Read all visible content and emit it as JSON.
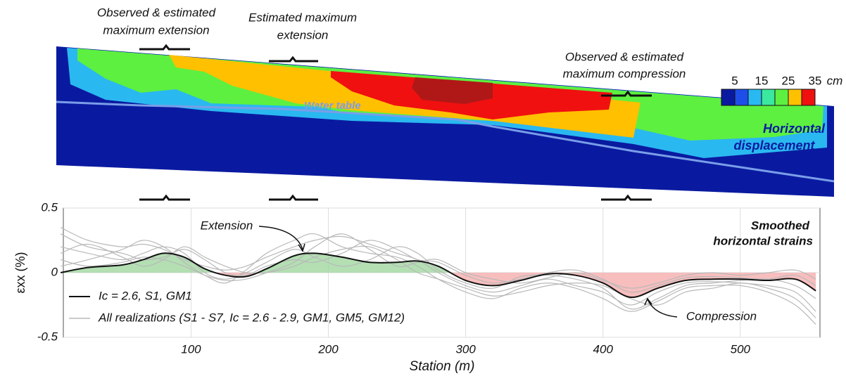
{
  "cross_section": {
    "annotations": [
      {
        "lines": [
          "Observed & estimated",
          "maximum extension"
        ]
      },
      {
        "lines": [
          "Estimated maximum",
          "extension"
        ]
      },
      {
        "lines": [
          "Observed & estimated",
          "maximum compression"
        ]
      }
    ],
    "water_table": "Water table",
    "panel_label": [
      "Horizontal",
      "displacement"
    ],
    "colorbar": {
      "colors": [
        "#0a1aa0",
        "#1d4fe8",
        "#2ab8f0",
        "#3ae8a0",
        "#5df040",
        "#ffc000",
        "#f01010"
      ],
      "ticks": [
        5,
        15,
        25,
        35
      ],
      "unit": "cm"
    }
  },
  "chart_data": {
    "type": "line",
    "x": [
      5,
      25,
      50,
      65,
      80,
      95,
      110,
      125,
      140,
      155,
      175,
      190,
      210,
      230,
      250,
      265,
      280,
      300,
      320,
      340,
      360,
      380,
      400,
      420,
      440,
      460,
      480,
      500,
      520,
      540,
      555
    ],
    "series": [
      {
        "name": "Ic = 2.6, S1, GM1",
        "color": "#111111",
        "values": [
          0,
          0.04,
          0.06,
          0.1,
          0.15,
          0.12,
          0.03,
          -0.02,
          -0.03,
          0.03,
          0.13,
          0.15,
          0.12,
          0.08,
          0.08,
          0.09,
          0.05,
          -0.06,
          -0.1,
          -0.06,
          -0.01,
          -0.02,
          -0.08,
          -0.19,
          -0.12,
          -0.06,
          -0.05,
          -0.05,
          -0.06,
          -0.05,
          -0.14
        ]
      },
      {
        "name": "All realizations (S1 - S7, Ic = 2.6 - 2.9, GM1, GM5, GM12)",
        "color": "#b8b8b8",
        "values": [
          [
            0.35,
            0.25,
            0.2,
            0.22,
            0.18,
            0.1,
            0.05,
            0.02,
            0.05,
            0.12,
            0.2,
            0.25,
            0.28,
            0.22,
            0.15,
            0.1,
            0,
            -0.1,
            -0.15,
            -0.1,
            -0.05,
            -0.1,
            -0.15,
            -0.25,
            -0.15,
            -0.08,
            -0.07,
            -0.08,
            -0.1,
            -0.15,
            -0.3
          ],
          [
            0.2,
            0.15,
            0.1,
            0.15,
            0.2,
            0.15,
            0,
            -0.05,
            0,
            0.08,
            0.18,
            0.12,
            0.05,
            0.1,
            0.2,
            0.15,
            0.02,
            -0.08,
            -0.12,
            -0.03,
            -0.02,
            -0.05,
            -0.12,
            -0.28,
            -0.2,
            -0.1,
            -0.08,
            -0.06,
            -0.05,
            -0.1,
            -0.2
          ],
          [
            0.05,
            0.1,
            0.18,
            0.25,
            0.2,
            0.08,
            -0.02,
            -0.08,
            0.02,
            0.15,
            0.25,
            0.3,
            0.2,
            0.15,
            0.12,
            0.05,
            -0.05,
            -0.15,
            -0.2,
            -0.12,
            -0.08,
            -0.12,
            -0.2,
            -0.3,
            -0.22,
            -0.12,
            -0.1,
            -0.1,
            -0.15,
            -0.25,
            -0.4
          ],
          [
            0.3,
            0.2,
            0.15,
            0.1,
            0.12,
            0.18,
            0.1,
            0,
            -0.02,
            0.05,
            0.1,
            0.08,
            0.15,
            0.25,
            0.18,
            0.1,
            0.08,
            -0.02,
            -0.08,
            -0.05,
            0,
            0.02,
            -0.05,
            -0.15,
            -0.1,
            -0.04,
            -0.03,
            -0.04,
            -0.05,
            -0.02,
            -0.1
          ],
          [
            0.15,
            0.22,
            0.12,
            0.05,
            0.1,
            0.2,
            0.12,
            0.05,
            0,
            0,
            0.05,
            0.12,
            0.18,
            0.2,
            0.1,
            0,
            -0.05,
            -0.12,
            -0.18,
            -0.15,
            -0.1,
            -0.08,
            -0.1,
            -0.2,
            -0.25,
            -0.15,
            -0.12,
            -0.08,
            -0.12,
            -0.2,
            -0.35
          ],
          [
            0.1,
            0.05,
            0.08,
            0.12,
            0.1,
            0.05,
            -0.02,
            -0.06,
            -0.05,
            0,
            0.08,
            0.2,
            0.3,
            0.18,
            0.05,
            0.08,
            0.1,
            0,
            -0.05,
            -0.08,
            -0.04,
            0,
            -0.06,
            -0.12,
            -0.08,
            -0.02,
            0,
            -0.02,
            0,
            0.02,
            -0.05
          ]
        ]
      }
    ],
    "fill_above": "#9ad49a",
    "fill_below": "#f5a8a8",
    "xlim": [
      7,
      558
    ],
    "xticks": [
      100,
      200,
      300,
      400,
      500
    ],
    "ylim": [
      -0.5,
      0.5
    ],
    "yticks": [
      -0.5,
      0,
      0.5
    ],
    "grid": true,
    "x_label": "Station (m)",
    "y_label": "εxx (%)",
    "annotations": [
      "Extension",
      "Compression"
    ],
    "panel_label": [
      "Smoothed",
      "horizontal strains"
    ]
  }
}
